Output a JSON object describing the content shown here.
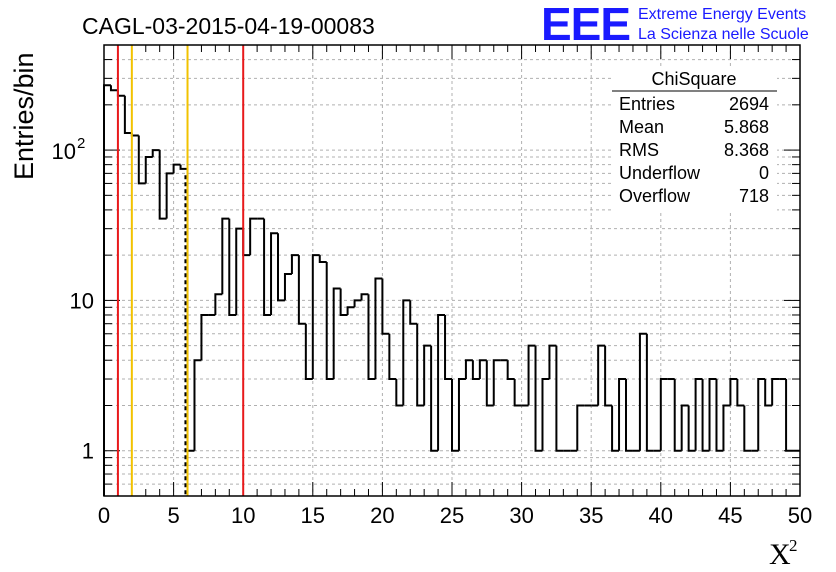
{
  "title": "CAGL-03-2015-04-19-00083",
  "logo": {
    "letters": "EEE",
    "line1": "Extreme Energy Events",
    "line2": "La Scienza nelle Scuole",
    "color": "#1a1aff"
  },
  "stats": {
    "title": "ChiSquare",
    "rows": [
      {
        "label": "Entries",
        "value": "2694"
      },
      {
        "label": "Mean",
        "value": "5.868"
      },
      {
        "label": "RMS",
        "value": "8.368"
      },
      {
        "label": "Underflow",
        "value": "0"
      },
      {
        "label": "Overflow",
        "value": "718"
      }
    ]
  },
  "chart_data": {
    "type": "bar",
    "style": "step-histogram",
    "ylabel": "Entries/bin",
    "xlabel": "X",
    "xlabel_superscript": "2",
    "xlim": [
      0,
      50
    ],
    "ylim": [
      0.5,
      500
    ],
    "yscale": "log",
    "grid": true,
    "legend_position": "top-right",
    "bin_width": 0.5,
    "x_ticks": [
      "0",
      "5",
      "10",
      "15",
      "20",
      "25",
      "30",
      "35",
      "40",
      "45",
      "50"
    ],
    "y_ticks": [
      {
        "value": 1,
        "label": "1"
      },
      {
        "value": 10,
        "label": "10"
      },
      {
        "value": 100,
        "label": "10",
        "exponent": "2"
      }
    ],
    "values": [
      270,
      250,
      230,
      130,
      125,
      60,
      90,
      100,
      35,
      70,
      80,
      75,
      1,
      4,
      8,
      8,
      11,
      35,
      8,
      30,
      20,
      35,
      35,
      8,
      28,
      10,
      15,
      20,
      7,
      3,
      20,
      18,
      3,
      12,
      8,
      9,
      10,
      11,
      3,
      14,
      6,
      3,
      2,
      10,
      7,
      2,
      5,
      1,
      8,
      3,
      1,
      3,
      4,
      3,
      4,
      2,
      4,
      4,
      3,
      2,
      2,
      5,
      1,
      3,
      5,
      1,
      1,
      1,
      2,
      2,
      2,
      5,
      2,
      1,
      3,
      1,
      1,
      6,
      1,
      1,
      3,
      3,
      1,
      2,
      1,
      3,
      1,
      3,
      1,
      2,
      3,
      2,
      1,
      1,
      3,
      2,
      3,
      3,
      1,
      1
    ],
    "vertical_lines": [
      {
        "x": 1,
        "color": "#e8191b"
      },
      {
        "x": 2,
        "color": "#f2c200"
      },
      {
        "x": 6,
        "color": "#f2c200"
      },
      {
        "x": 10,
        "color": "#e8191b"
      }
    ],
    "dashed_line": {
      "x": 5.85,
      "color": "#000000"
    }
  }
}
